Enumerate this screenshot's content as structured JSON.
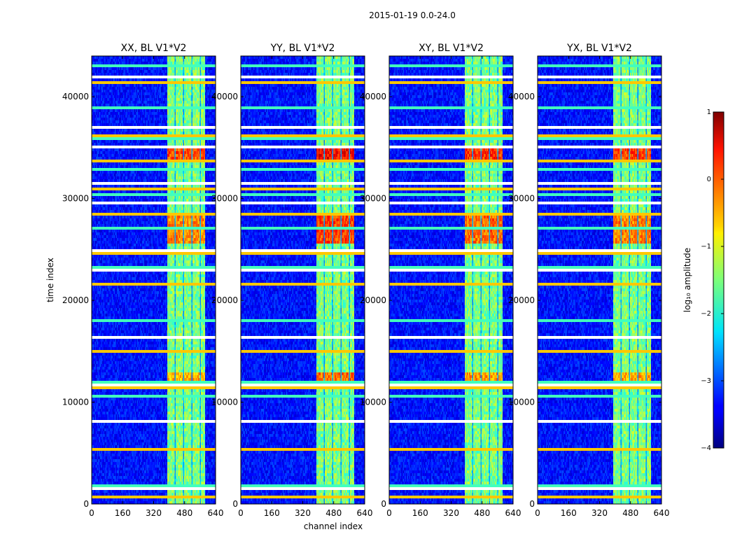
{
  "chart_data": {
    "type": "heatmap",
    "suptitle": "2015-01-19 0.0-24.0",
    "xlabel": "channel index",
    "ylabel": "time index",
    "xlim": [
      0,
      640
    ],
    "ylim": [
      0,
      44000
    ],
    "xticks": [
      0,
      160,
      320,
      480,
      640
    ],
    "yticks": [
      0,
      10000,
      20000,
      30000,
      40000
    ],
    "panels": [
      {
        "title": "XX, BL V1*V2",
        "peak": 0.1
      },
      {
        "title": "YY, BL V1*V2",
        "peak": 0.45
      },
      {
        "title": "XY, BL V1*V2",
        "peak": 0.25
      },
      {
        "title": "YX, BL V1*V2",
        "peak": 0.15
      }
    ],
    "colorbar": {
      "label": "log₁₀ amplitude",
      "min": -4,
      "max": 1,
      "ticks": [
        1,
        0,
        -1,
        -2,
        -3,
        -4
      ],
      "tick_labels": [
        "1",
        "0",
        "−1",
        "−2",
        "−3",
        "−4"
      ],
      "colormap": "jet"
    },
    "signal_band_channels": [
      388,
      588
    ],
    "subband_gaps_channels": [
      426,
      433,
      470,
      477,
      513,
      520,
      556,
      563
    ],
    "background_level": -3.3,
    "band_level": -1.5,
    "strong_rows": [
      {
        "t_range": [
          33800,
          35200
        ],
        "level": 0.3
      },
      {
        "t_range": [
          25500,
          28500
        ],
        "level": 0.0
      },
      {
        "t_range": [
          12200,
          13000
        ],
        "level": -0.2
      }
    ],
    "rfi_rows_time_index": [
      700,
      1400,
      1800,
      5500,
      8000,
      10500,
      11300,
      11800,
      12000,
      15000,
      16500,
      18000,
      21500,
      22900,
      23300,
      24700,
      25000,
      27000,
      28500,
      29500,
      30300,
      31000,
      31500,
      33000,
      33600,
      35200,
      36000,
      36300,
      37000,
      38900,
      41500,
      42000,
      43000
    ]
  }
}
